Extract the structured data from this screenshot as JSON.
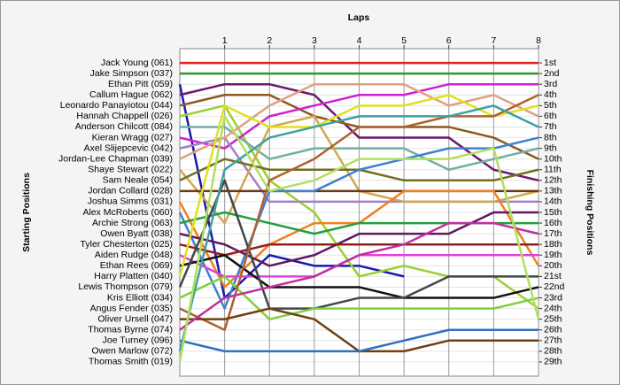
{
  "chart_data": {
    "type": "lap",
    "title": "Laps",
    "ylabel": "Starting Positions",
    "y2label": "Finishing Positions",
    "x": [
      0,
      1,
      2,
      3,
      4,
      5,
      6,
      7,
      8
    ],
    "xlim": [
      0,
      8
    ],
    "xticks": [
      1,
      2,
      3,
      4,
      5,
      6,
      7,
      8
    ],
    "ylim": [
      0,
      30
    ],
    "y_inverted": true,
    "grid": true,
    "y2ticks": [
      {
        "value": 1,
        "label": "1st"
      },
      {
        "value": 2,
        "label": "2nd"
      },
      {
        "value": 3,
        "label": "3rd"
      },
      {
        "value": 4,
        "label": "4th"
      },
      {
        "value": 5,
        "label": "5th"
      },
      {
        "value": 6,
        "label": "6th"
      },
      {
        "value": 7,
        "label": "7th"
      },
      {
        "value": 8,
        "label": "8th"
      },
      {
        "value": 9,
        "label": "9th"
      },
      {
        "value": 10,
        "label": "10th"
      },
      {
        "value": 11,
        "label": "11th"
      },
      {
        "value": 12,
        "label": "12th"
      },
      {
        "value": 13,
        "label": "13th"
      },
      {
        "value": 14,
        "label": "14th"
      },
      {
        "value": 15,
        "label": "15th"
      },
      {
        "value": 16,
        "label": "16th"
      },
      {
        "value": 17,
        "label": "17th"
      },
      {
        "value": 18,
        "label": "18th"
      },
      {
        "value": 19,
        "label": "19th"
      },
      {
        "value": 20,
        "label": "20th"
      },
      {
        "value": 21,
        "label": "21st"
      },
      {
        "value": 22,
        "label": "22nd"
      },
      {
        "value": 23,
        "label": "23rd"
      },
      {
        "value": 24,
        "label": "24th"
      },
      {
        "value": 25,
        "label": "25th"
      },
      {
        "value": 26,
        "label": "26th"
      },
      {
        "value": 27,
        "label": "27th"
      },
      {
        "value": 28,
        "label": "28th"
      },
      {
        "value": 29,
        "label": "29th"
      }
    ],
    "series": [
      {
        "name": "Jack Young (061)",
        "color": "#e02020",
        "values": [
          1,
          1,
          1,
          1,
          1,
          1,
          1,
          1,
          1
        ]
      },
      {
        "name": "Jake Simpson (037)",
        "color": "#2a9a2a",
        "values": [
          2,
          2,
          2,
          2,
          2,
          2,
          2,
          2,
          2
        ]
      },
      {
        "name": "Ethan Pitt (059)",
        "color": "#1a1ab0",
        "values": [
          3,
          23,
          19,
          20,
          20,
          21,
          null,
          null,
          null
        ]
      },
      {
        "name": "Callum Hague (062)",
        "color": "#6a1a6a",
        "values": [
          4,
          3,
          3,
          4,
          8,
          8,
          8,
          11,
          12
        ]
      },
      {
        "name": "Leonardo Panayiotou (044)",
        "color": "#8a5a20",
        "values": [
          5,
          4,
          4,
          6,
          7,
          7,
          7,
          8,
          10
        ]
      },
      {
        "name": "Hannah Chappell (026)",
        "color": "#9ad030",
        "values": [
          6,
          5,
          12,
          15,
          21,
          20,
          21,
          21,
          24
        ]
      },
      {
        "name": "Anderson Chilcott (084)",
        "color": "#70b0a0",
        "values": [
          7,
          7,
          10,
          9,
          9,
          9,
          11,
          10,
          9
        ]
      },
      {
        "name": "Kieran Wragg (027)",
        "color": "#d020d0",
        "values": [
          8,
          9,
          6,
          5,
          4,
          4,
          3,
          3,
          3
        ]
      },
      {
        "name": "Axel Slijepcevic (042)",
        "color": "#a080c8",
        "values": [
          9,
          8,
          14,
          14,
          14,
          14,
          14,
          14,
          14
        ]
      },
      {
        "name": "Jordan-Lee Chapman (039)",
        "color": "#e0a080",
        "values": [
          10,
          8,
          5,
          3,
          3,
          3,
          5,
          4,
          6
        ]
      },
      {
        "name": "Shaye Stewart (022)",
        "color": "#d0a850",
        "values": [
          11,
          16,
          7,
          6,
          13,
          14,
          14,
          14,
          13
        ]
      },
      {
        "name": "Sam Neale (054)",
        "color": "#707020",
        "values": [
          12,
          10,
          11,
          11,
          11,
          12,
          12,
          12,
          11
        ]
      },
      {
        "name": "Jordan Collard (028)",
        "color": "#6a3a10",
        "values": [
          13,
          13,
          13,
          13,
          13,
          13,
          13,
          13,
          13
        ]
      },
      {
        "name": "Joshua Simms (031)",
        "color": "#f08020",
        "values": [
          14,
          22,
          18,
          16,
          16,
          13,
          13,
          13,
          20
        ]
      },
      {
        "name": "Alex McRoberts (060)",
        "color": "#4080d0",
        "values": [
          15,
          24,
          13,
          13,
          11,
          10,
          9,
          9,
          8
        ]
      },
      {
        "name": "Archie Strong (063)",
        "color": "#20a040",
        "values": [
          16,
          15,
          16,
          17,
          16,
          16,
          16,
          16,
          16
        ]
      },
      {
        "name": "Owen Byatt (038)",
        "color": "#601860",
        "values": [
          17,
          18,
          20,
          19,
          17,
          17,
          17,
          15,
          15
        ]
      },
      {
        "name": "Tyler Chesterton (025)",
        "color": "#902020",
        "values": [
          18,
          19,
          18,
          18,
          18,
          18,
          18,
          18,
          18
        ]
      },
      {
        "name": "Aiden Rudge (048)",
        "color": "#e040e0",
        "values": [
          19,
          21,
          21,
          21,
          19,
          19,
          19,
          19,
          19
        ]
      },
      {
        "name": "Ethan Rees (069)",
        "color": "#101010",
        "values": [
          20,
          19,
          22,
          22,
          22,
          23,
          23,
          23,
          22
        ]
      },
      {
        "name": "Harry Platten (040)",
        "color": "#e0e020",
        "values": [
          21,
          5,
          7,
          7,
          5,
          5,
          4,
          6,
          5
        ]
      },
      {
        "name": "Lewis Thompson (079)",
        "color": "#404848",
        "values": [
          22,
          12,
          24,
          24,
          23,
          23,
          21,
          21,
          21
        ]
      },
      {
        "name": "Kris Elliott (034)",
        "color": "#80d040",
        "values": [
          23,
          21,
          25,
          24,
          24,
          24,
          24,
          24,
          23
        ]
      },
      {
        "name": "Angus Fender (035)",
        "color": "#b06030",
        "values": [
          24,
          26,
          12,
          10,
          7,
          7,
          6,
          6,
          4
        ]
      },
      {
        "name": "Oliver Ursell (047)",
        "color": "#704010",
        "values": [
          25,
          25,
          24,
          25,
          28,
          28,
          27,
          27,
          27
        ]
      },
      {
        "name": "Thomas Byrne (074)",
        "color": "#c030a0",
        "values": [
          26,
          23,
          22,
          21,
          19,
          18,
          16,
          16,
          17
        ]
      },
      {
        "name": "Joe Turney (096)",
        "color": "#3070c0",
        "values": [
          27,
          28,
          28,
          28,
          28,
          27,
          26,
          26,
          26
        ]
      },
      {
        "name": "Owen Marlow (072)",
        "color": "#40a0a0",
        "values": [
          28,
          11,
          8,
          7,
          6,
          6,
          6,
          5,
          7
        ]
      },
      {
        "name": "Thomas Smith (019)",
        "color": "#b0e060",
        "values": [
          29,
          6,
          13,
          12,
          10,
          10,
          10,
          9,
          25
        ]
      }
    ]
  }
}
